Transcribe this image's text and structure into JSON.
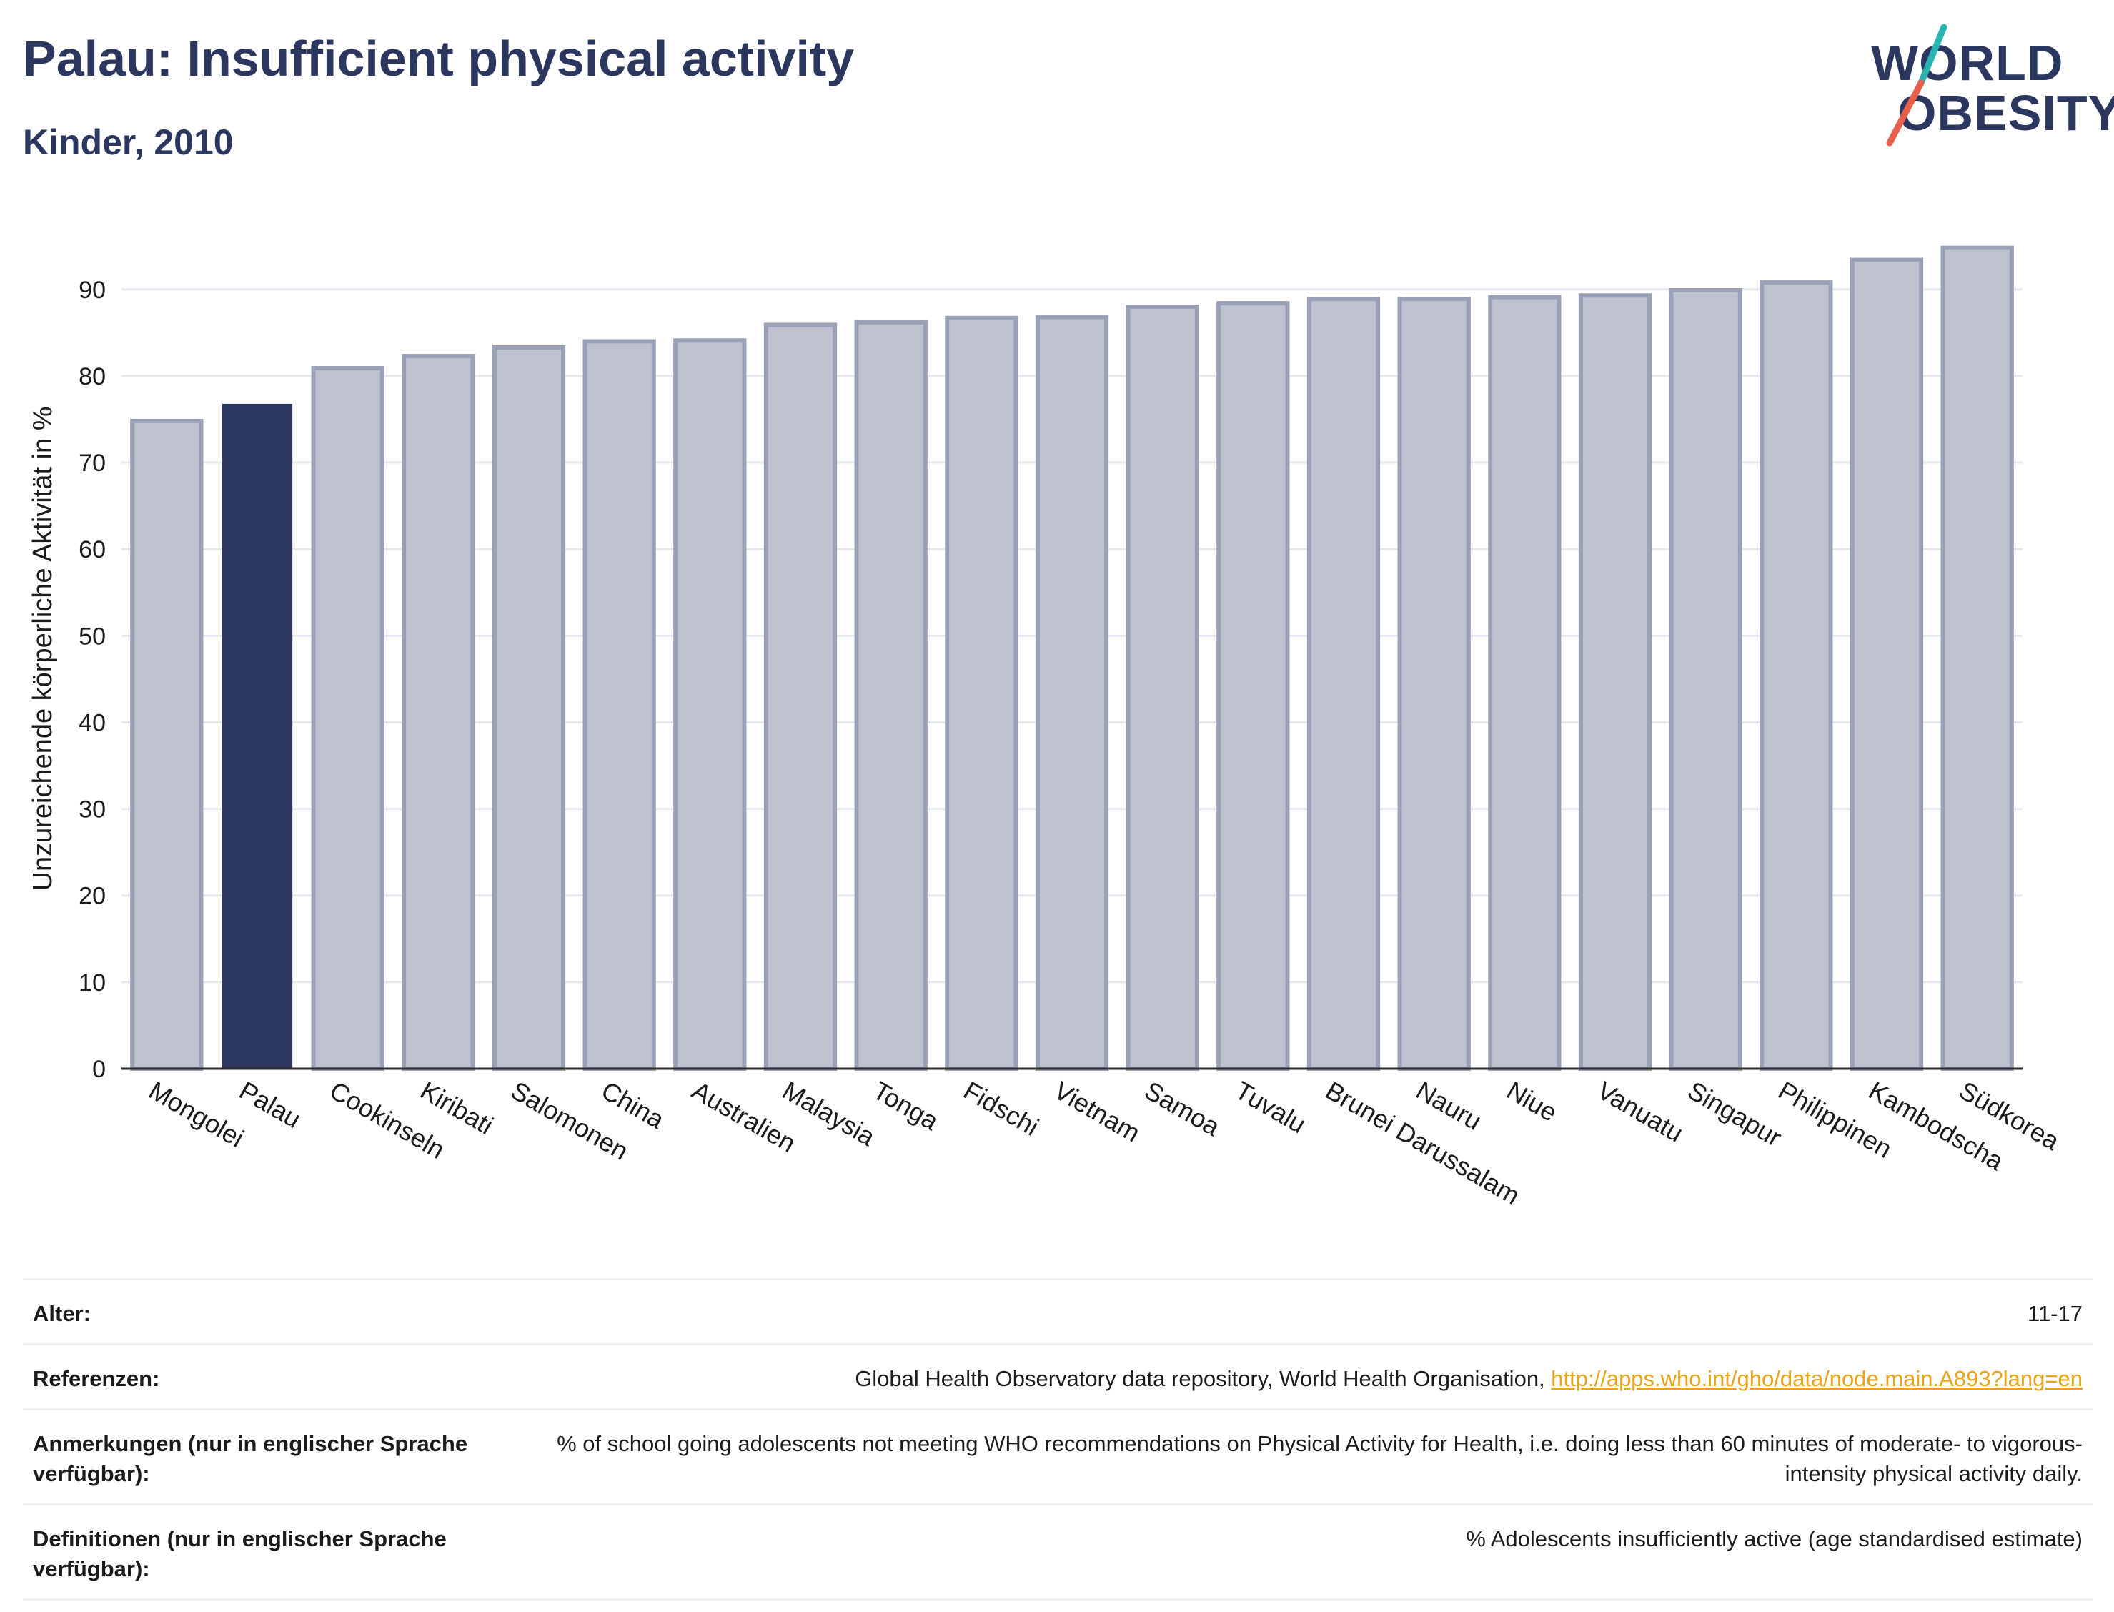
{
  "header": {
    "title": "Palau: Insufficient physical activity",
    "subtitle": "Kinder, 2010"
  },
  "logo": {
    "line1": "WORLD",
    "line2": "OBESITY",
    "accent_teal": "#2bb3b1",
    "accent_coral": "#e8604c"
  },
  "colors": {
    "highlight": "#2c3760",
    "bar_fill": "#bec2cf",
    "bar_stroke": "#9aa1b7",
    "grid": "#e6e8ee"
  },
  "chart_data": {
    "type": "bar",
    "title": "Palau: Insufficient physical activity",
    "subtitle": "Kinder, 2010",
    "xlabel": "",
    "ylabel": "Unzureichende körperliche Aktivität in %",
    "ylim": [
      0,
      97
    ],
    "yticks": [
      0,
      10,
      20,
      30,
      40,
      50,
      60,
      70,
      80,
      90
    ],
    "grid": true,
    "highlight": "Palau",
    "categories": [
      "Mongolei",
      "Palau",
      "Cookinseln",
      "Kiribati",
      "Salomonen",
      "China",
      "Australien",
      "Malaysia",
      "Tonga",
      "Fidschi",
      "Vietnam",
      "Samoa",
      "Tuvalu",
      "Brunei Darussalam",
      "Nauru",
      "Niue",
      "Vanuatu",
      "Singapur",
      "Philippinen",
      "Kambodscha",
      "Südkorea"
    ],
    "values": [
      74.8,
      76.7,
      80.9,
      82.3,
      83.3,
      84.0,
      84.1,
      85.9,
      86.2,
      86.7,
      86.8,
      88.0,
      88.4,
      88.9,
      88.9,
      89.1,
      89.3,
      89.9,
      90.8,
      93.4,
      94.8
    ]
  },
  "info_table": [
    {
      "key": "Alter:",
      "value": "11-17"
    },
    {
      "key": "Referenzen:",
      "value": "Global Health Observatory data repository, World Health Organisation, ",
      "link": "http://apps.who.int/gho/data/node.main.A893?lang=en"
    },
    {
      "key": "Anmerkungen (nur in englischer Sprache verfügbar):",
      "value": "% of school going adolescents not meeting WHO recommendations on Physical Activity for Health, i.e. doing less than 60 minutes of moderate- to vigorous-intensity physical activity daily."
    },
    {
      "key": "Definitionen (nur in englischer Sprache verfügbar):",
      "value": "% Adolescents insufficiently active (age standardised estimate)"
    }
  ]
}
